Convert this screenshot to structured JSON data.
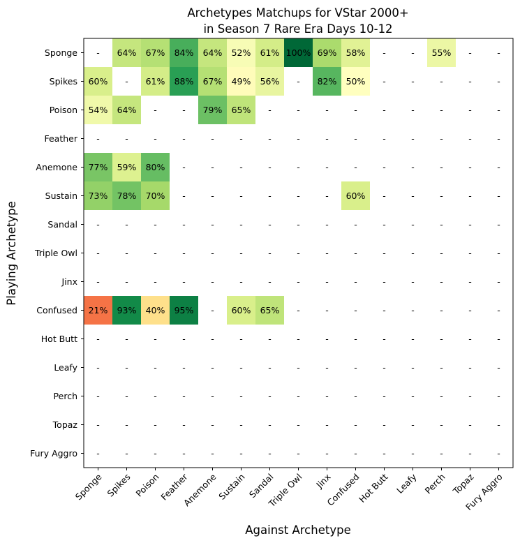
{
  "chart_data": {
    "type": "heatmap",
    "title_lines": [
      "Archetypes Matchups for VStar 2000+",
      "in Season 7 Rare Era Days 10-12"
    ],
    "xlabel": "Against Archetype",
    "ylabel": "Playing Archetype",
    "rows": [
      "Sponge",
      "Spikes",
      "Poison",
      "Feather",
      "Anemone",
      "Sustain",
      "Sandal",
      "Triple Owl",
      "Jinx",
      "Confused",
      "Hot Butt",
      "Leafy",
      "Perch",
      "Topaz",
      "Fury Aggro"
    ],
    "columns": [
      "Sponge",
      "Spikes",
      "Poison",
      "Feather",
      "Anemone",
      "Sustain",
      "Sandal",
      "Triple Owl",
      "Jinx",
      "Confused",
      "Hot Butt",
      "Leafy",
      "Perch",
      "Topaz",
      "Fury Aggro"
    ],
    "missing_label": "-",
    "value_suffix": "%",
    "color_scale": "RdYlGn",
    "value_range": [
      0,
      100
    ],
    "values": [
      [
        null,
        64,
        67,
        84,
        64,
        52,
        61,
        100,
        69,
        58,
        null,
        null,
        55,
        null,
        null
      ],
      [
        60,
        null,
        61,
        88,
        67,
        49,
        56,
        null,
        82,
        50,
        null,
        null,
        null,
        null,
        null
      ],
      [
        54,
        64,
        null,
        null,
        79,
        65,
        null,
        null,
        null,
        null,
        null,
        null,
        null,
        null,
        null
      ],
      [
        null,
        null,
        null,
        null,
        null,
        null,
        null,
        null,
        null,
        null,
        null,
        null,
        null,
        null,
        null
      ],
      [
        77,
        59,
        80,
        null,
        null,
        null,
        null,
        null,
        null,
        null,
        null,
        null,
        null,
        null,
        null
      ],
      [
        73,
        78,
        70,
        null,
        null,
        null,
        null,
        null,
        null,
        60,
        null,
        null,
        null,
        null,
        null
      ],
      [
        null,
        null,
        null,
        null,
        null,
        null,
        null,
        null,
        null,
        null,
        null,
        null,
        null,
        null,
        null
      ],
      [
        null,
        null,
        null,
        null,
        null,
        null,
        null,
        null,
        null,
        null,
        null,
        null,
        null,
        null,
        null
      ],
      [
        null,
        null,
        null,
        null,
        null,
        null,
        null,
        null,
        null,
        null,
        null,
        null,
        null,
        null,
        null
      ],
      [
        21,
        93,
        40,
        95,
        null,
        60,
        65,
        null,
        null,
        null,
        null,
        null,
        null,
        null,
        null
      ],
      [
        null,
        null,
        null,
        null,
        null,
        null,
        null,
        null,
        null,
        null,
        null,
        null,
        null,
        null,
        null
      ],
      [
        null,
        null,
        null,
        null,
        null,
        null,
        null,
        null,
        null,
        null,
        null,
        null,
        null,
        null,
        null
      ],
      [
        null,
        null,
        null,
        null,
        null,
        null,
        null,
        null,
        null,
        null,
        null,
        null,
        null,
        null,
        null
      ],
      [
        null,
        null,
        null,
        null,
        null,
        null,
        null,
        null,
        null,
        null,
        null,
        null,
        null,
        null,
        null
      ],
      [
        null,
        null,
        null,
        null,
        null,
        null,
        null,
        null,
        null,
        null,
        null,
        null,
        null,
        null,
        null
      ]
    ]
  }
}
